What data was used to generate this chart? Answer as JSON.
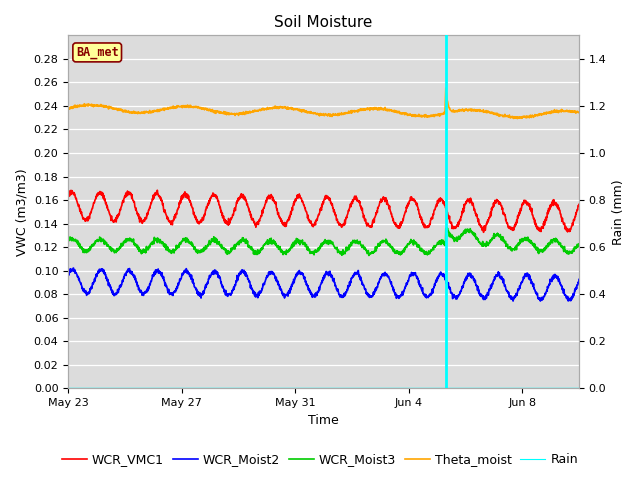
{
  "title": "Soil Moisture",
  "ylabel_left": "VWC (m3/m3)",
  "ylabel_right": "Rain (mm)",
  "xlabel": "Time",
  "ylim_left": [
    0.0,
    0.3
  ],
  "ylim_right": [
    0.0,
    1.5
  ],
  "yticks_left": [
    0.0,
    0.02,
    0.04,
    0.06,
    0.08,
    0.1,
    0.12,
    0.14,
    0.16,
    0.18,
    0.2,
    0.22,
    0.24,
    0.26,
    0.28
  ],
  "yticks_right": [
    0.0,
    0.2,
    0.4,
    0.6,
    0.8,
    1.0,
    1.2,
    1.4
  ],
  "duration_days": 18.0,
  "rain_event_day": 13.3,
  "background_color": "#dcdcdc",
  "fig_background": "#ffffff",
  "legend_labels": [
    "WCR_VMC1",
    "WCR_Moist2",
    "WCR_Moist3",
    "Theta_moist",
    "Rain"
  ],
  "line_colors": [
    "#ff0000",
    "#0000ff",
    "#00cc00",
    "#ffa500",
    "#00ffff"
  ],
  "ba_met_box_color": "#ffff99",
  "ba_met_text_color": "#880000",
  "xtick_labels": [
    "May 23",
    "May 27",
    "May 31",
    "Jun 4",
    "Jun 8"
  ],
  "xtick_positions_days": [
    0,
    4,
    8,
    12,
    16
  ],
  "title_fontsize": 11,
  "axis_label_fontsize": 9,
  "tick_fontsize": 8,
  "legend_fontsize": 9
}
